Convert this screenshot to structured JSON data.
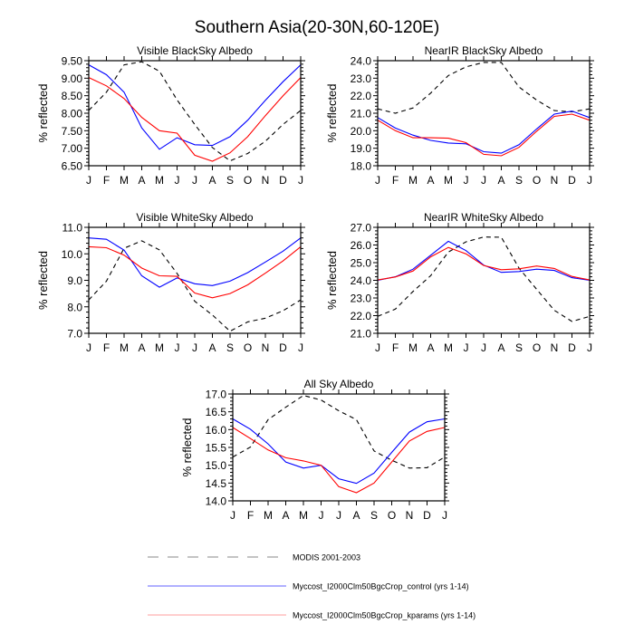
{
  "title": "Southern Asia(20-30N,60-120E)",
  "colors": {
    "modis": "#000000",
    "control": "#0000ff",
    "kparams": "#ff0000",
    "legend_modis": "#b0b0b0",
    "legend_control": "#8080ff",
    "legend_kparams": "#ffb0b0"
  },
  "legend": {
    "placement": "bottom",
    "items": [
      {
        "label": "MODIS 2001-2003",
        "style": "dashed",
        "color": "#b0b0b0"
      },
      {
        "label": "Myccost_I2000Clm50BgcCrop_control (yrs 1-14)",
        "style": "solid",
        "color": "#8080ff"
      },
      {
        "label": "Myccost_I2000Clm50BgcCrop_kparams (yrs 1-14)",
        "style": "solid",
        "color": "#ffb0b0"
      }
    ]
  },
  "chart_data": [
    {
      "type": "line",
      "title": "Visible BlackSky Albedo",
      "ylabel": "% reflected",
      "categories": [
        "J",
        "F",
        "M",
        "A",
        "M",
        "J",
        "J",
        "A",
        "S",
        "O",
        "N",
        "D",
        "J"
      ],
      "ylim": [
        6.5,
        9.5
      ],
      "yticks": [
        "6.50",
        "7.00",
        "7.50",
        "8.00",
        "8.50",
        "9.00",
        "9.50"
      ],
      "series": [
        {
          "name": "MODIS 2001-2003",
          "style": "dashed",
          "values": [
            8.08,
            8.6,
            9.38,
            9.47,
            9.2,
            8.38,
            7.68,
            7.02,
            6.64,
            6.85,
            7.2,
            7.68,
            8.08
          ]
        },
        {
          "name": "Myccost_I2000Clm50BgcCrop_control (yrs 1-14)",
          "style": "solid",
          "values": [
            9.38,
            9.1,
            8.6,
            7.58,
            6.97,
            7.3,
            7.1,
            7.08,
            7.33,
            7.8,
            8.37,
            8.9,
            9.38
          ]
        },
        {
          "name": "Myccost_I2000Clm50BgcCrop_kparams (yrs 1-14)",
          "style": "solid",
          "values": [
            9.02,
            8.78,
            8.42,
            7.88,
            7.5,
            7.43,
            6.8,
            6.63,
            6.87,
            7.33,
            7.93,
            8.5,
            9.02
          ]
        }
      ]
    },
    {
      "type": "line",
      "title": "NearIR BlackSky Albedo",
      "ylabel": "% reflected",
      "categories": [
        "J",
        "F",
        "M",
        "A",
        "M",
        "J",
        "J",
        "A",
        "S",
        "O",
        "N",
        "D",
        "J"
      ],
      "ylim": [
        18,
        24
      ],
      "yticks": [
        "18.0",
        "19.0",
        "20.0",
        "21.0",
        "22.0",
        "23.0",
        "24.0"
      ],
      "series": [
        {
          "name": "MODIS 2001-2003",
          "style": "dashed",
          "values": [
            21.25,
            21.0,
            21.3,
            22.15,
            23.15,
            23.65,
            23.9,
            23.9,
            22.5,
            21.75,
            21.15,
            21.08,
            21.25
          ]
        },
        {
          "name": "Myccost_I2000Clm50BgcCrop_control (yrs 1-14)",
          "style": "solid",
          "values": [
            20.75,
            20.15,
            19.75,
            19.45,
            19.3,
            19.25,
            18.8,
            18.72,
            19.2,
            20.1,
            20.95,
            21.12,
            20.75
          ]
        },
        {
          "name": "Myccost_I2000Clm50BgcCrop_kparams (yrs 1-14)",
          "style": "solid",
          "values": [
            20.6,
            20.0,
            19.6,
            19.6,
            19.57,
            19.32,
            18.65,
            18.57,
            19.05,
            19.97,
            20.82,
            20.95,
            20.6
          ]
        }
      ]
    },
    {
      "type": "line",
      "title": "Visible WhiteSky Albedo",
      "ylabel": "% reflected",
      "categories": [
        "J",
        "F",
        "M",
        "A",
        "M",
        "J",
        "J",
        "A",
        "S",
        "O",
        "N",
        "D",
        "J"
      ],
      "ylim": [
        7,
        11
      ],
      "yticks": [
        "7.0",
        "8.0",
        "9.0",
        "10.0",
        "11.0"
      ],
      "series": [
        {
          "name": "MODIS 2001-2003",
          "style": "dashed",
          "values": [
            8.26,
            8.97,
            10.21,
            10.49,
            10.15,
            9.26,
            8.21,
            7.69,
            7.08,
            7.43,
            7.57,
            7.85,
            8.26
          ]
        },
        {
          "name": "Myccost_I2000Clm50BgcCrop_control (yrs 1-14)",
          "style": "solid",
          "values": [
            10.6,
            10.55,
            10.14,
            9.17,
            8.74,
            9.09,
            8.87,
            8.8,
            8.97,
            9.29,
            9.69,
            10.1,
            10.6
          ]
        },
        {
          "name": "Myccost_I2000Clm50BgcCrop_kparams (yrs 1-14)",
          "style": "solid",
          "values": [
            10.27,
            10.23,
            9.95,
            9.46,
            9.17,
            9.15,
            8.52,
            8.34,
            8.5,
            8.83,
            9.27,
            9.73,
            10.27
          ]
        }
      ]
    },
    {
      "type": "line",
      "title": "NearIR WhiteSky Albedo",
      "ylabel": "% reflected",
      "categories": [
        "J",
        "F",
        "M",
        "A",
        "M",
        "J",
        "J",
        "A",
        "S",
        "O",
        "N",
        "D",
        "J"
      ],
      "ylim": [
        21,
        27
      ],
      "yticks": [
        "21.0",
        "22.0",
        "23.0",
        "24.0",
        "25.0",
        "26.0",
        "27.0"
      ],
      "series": [
        {
          "name": "MODIS 2001-2003",
          "style": "dashed",
          "values": [
            21.96,
            22.37,
            23.37,
            24.26,
            25.6,
            26.18,
            26.45,
            26.44,
            24.69,
            23.49,
            22.3,
            21.67,
            21.96
          ]
        },
        {
          "name": "Myccost_I2000Clm50BgcCrop_control (yrs 1-14)",
          "style": "solid",
          "values": [
            24.0,
            24.2,
            24.63,
            25.42,
            26.21,
            25.68,
            24.86,
            24.45,
            24.5,
            24.63,
            24.56,
            24.15,
            24.0
          ]
        },
        {
          "name": "Myccost_I2000Clm50BgcCrop_kparams (yrs 1-14)",
          "style": "solid",
          "values": [
            24.02,
            24.19,
            24.53,
            25.33,
            25.86,
            25.5,
            24.84,
            24.6,
            24.65,
            24.81,
            24.67,
            24.22,
            24.02
          ]
        }
      ]
    },
    {
      "type": "line",
      "title": "All Sky Albedo",
      "ylabel": "% reflected",
      "categories": [
        "J",
        "F",
        "M",
        "A",
        "M",
        "J",
        "J",
        "A",
        "S",
        "O",
        "N",
        "D",
        "J"
      ],
      "ylim": [
        14,
        17
      ],
      "yticks": [
        "14.0",
        "14.5",
        "15.0",
        "15.5",
        "16.0",
        "16.5",
        "17.0"
      ],
      "series": [
        {
          "name": "MODIS 2001-2003",
          "style": "dashed",
          "values": [
            15.23,
            15.51,
            16.28,
            16.63,
            16.96,
            16.83,
            16.53,
            16.28,
            15.4,
            15.14,
            14.92,
            14.93,
            15.23
          ]
        },
        {
          "name": "Myccost_I2000Clm50BgcCrop_control (yrs 1-14)",
          "style": "solid",
          "values": [
            16.3,
            16.01,
            15.6,
            15.09,
            14.92,
            15.0,
            14.62,
            14.49,
            14.78,
            15.36,
            15.93,
            16.22,
            16.3
          ]
        },
        {
          "name": "Myccost_I2000Clm50BgcCrop_kparams (yrs 1-14)",
          "style": "solid",
          "values": [
            16.06,
            15.75,
            15.43,
            15.21,
            15.12,
            15.0,
            14.4,
            14.23,
            14.5,
            15.09,
            15.68,
            15.95,
            16.06
          ]
        }
      ]
    }
  ]
}
